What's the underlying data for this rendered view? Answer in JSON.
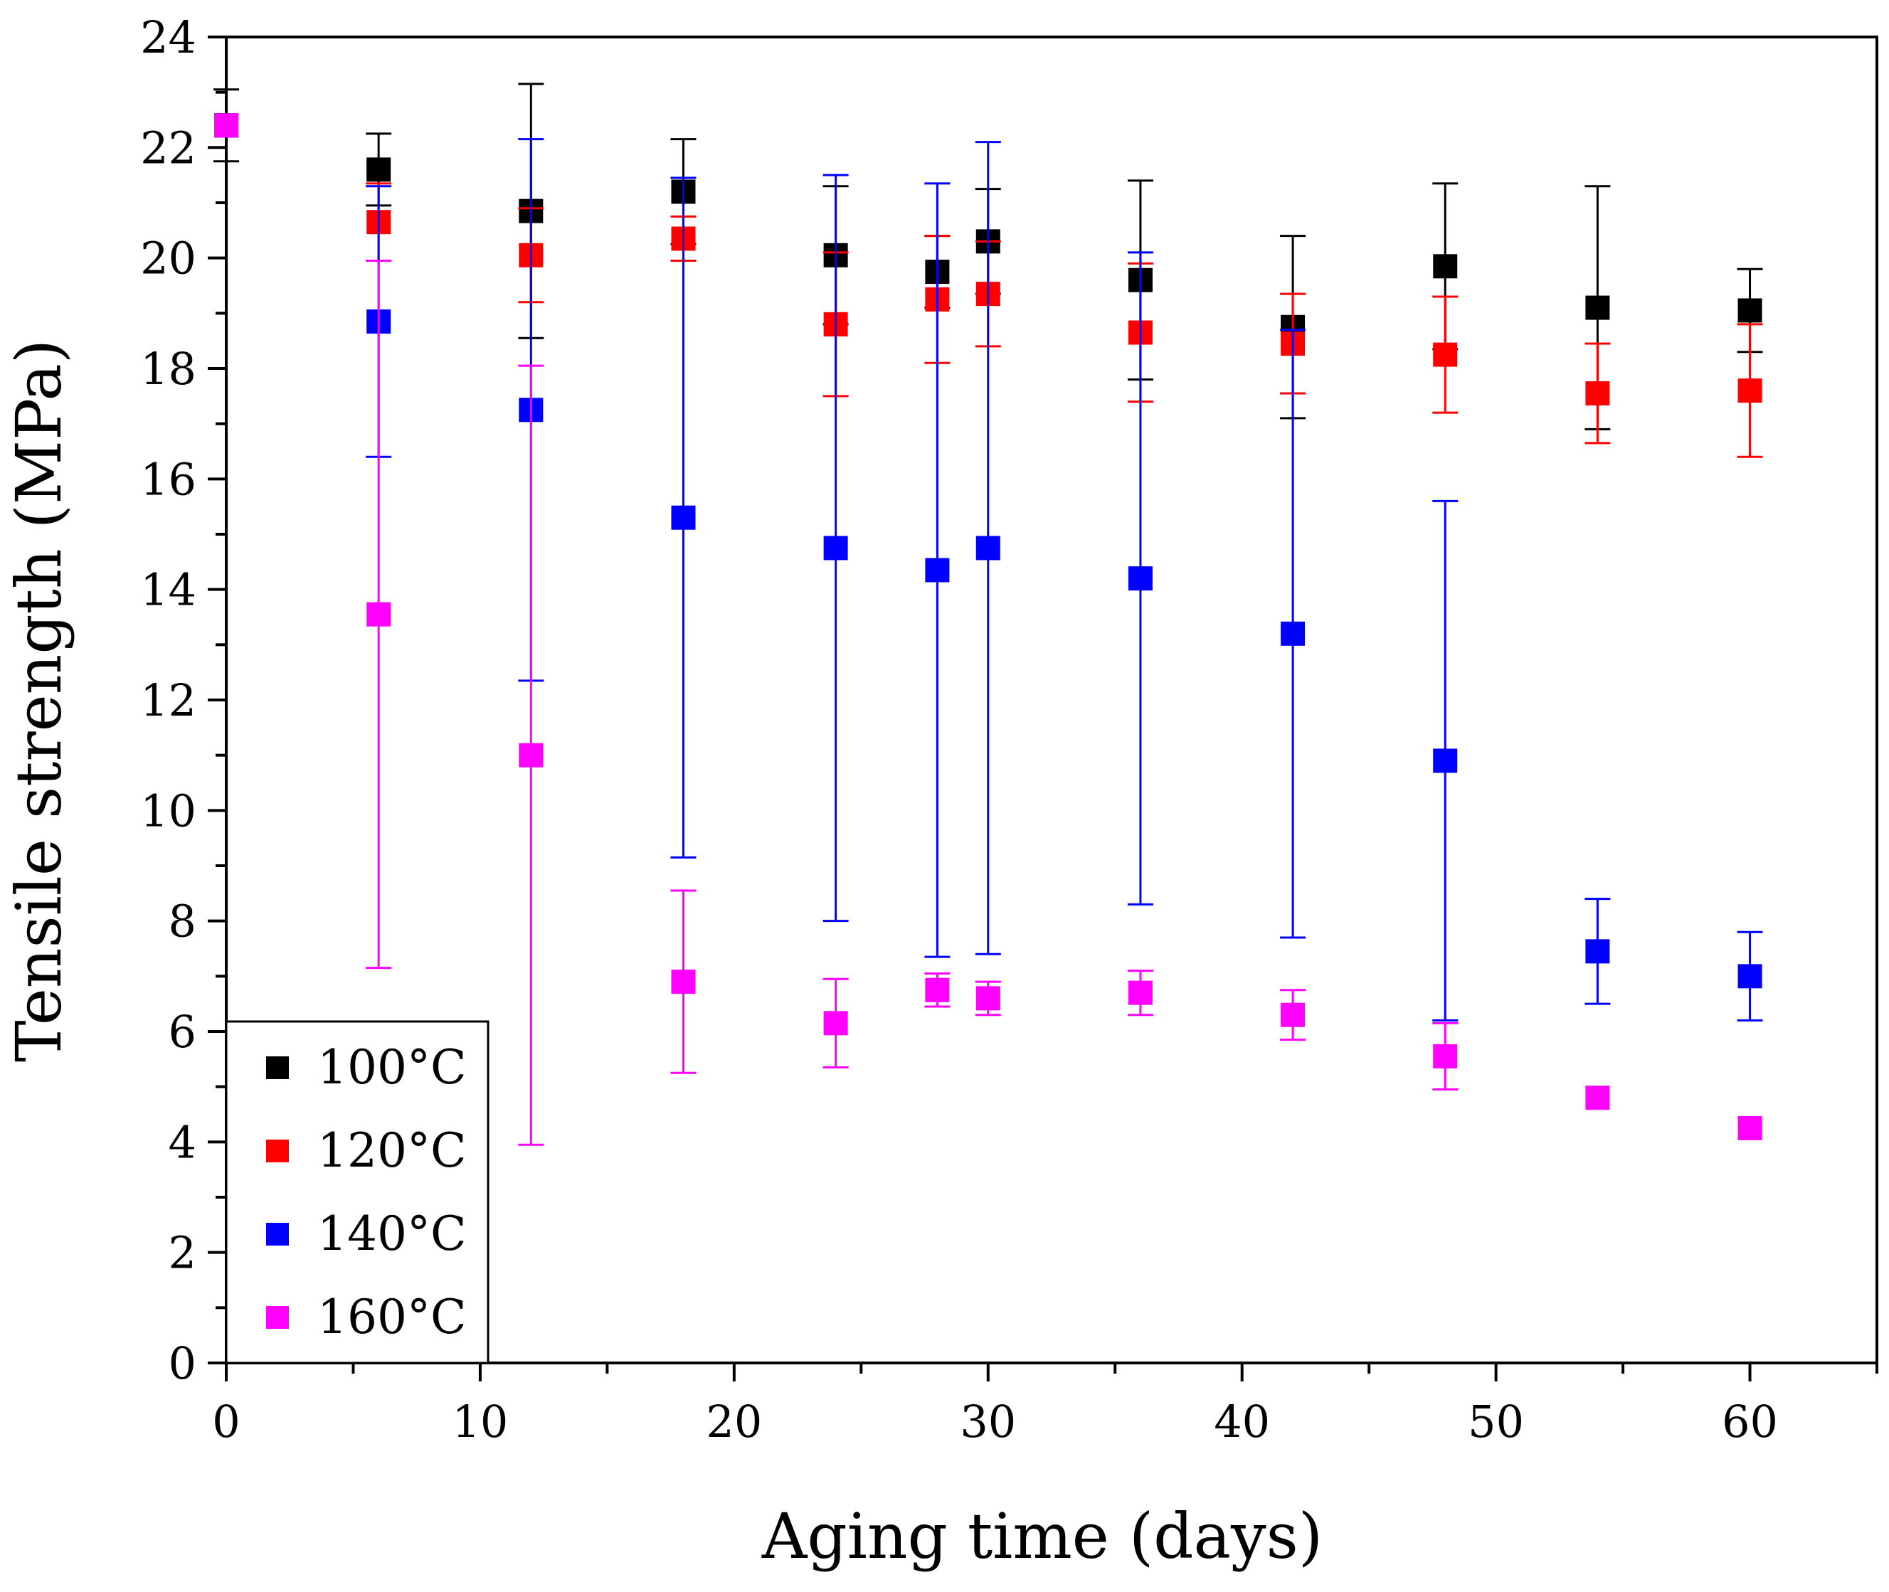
{
  "chart_data": {
    "type": "scatter",
    "xlabel": "Aging time (days)",
    "ylabel": "Tensile strength (MPa)",
    "xlim": [
      0,
      65
    ],
    "ylim": [
      0,
      24
    ],
    "x_ticks": [
      0,
      10,
      20,
      30,
      40,
      50,
      60
    ],
    "y_ticks": [
      0,
      2,
      4,
      6,
      8,
      10,
      12,
      14,
      16,
      18,
      20,
      22,
      24
    ],
    "grid": false,
    "legend_position": "bottom-left",
    "error_bars": true,
    "series": [
      {
        "name": "100°C",
        "color": "#000000",
        "points": [
          {
            "x": 0,
            "y": 22.4,
            "err": 0.65
          },
          {
            "x": 6,
            "y": 21.6,
            "err": 0.65
          },
          {
            "x": 12,
            "y": 20.85,
            "err": 2.3
          },
          {
            "x": 18,
            "y": 21.2,
            "err": 0.95
          },
          {
            "x": 24,
            "y": 20.05,
            "err": 1.25
          },
          {
            "x": 28,
            "y": 19.75,
            "err": 0.65
          },
          {
            "x": 30,
            "y": 20.3,
            "err": 0.95
          },
          {
            "x": 36,
            "y": 19.6,
            "err": 1.8
          },
          {
            "x": 42,
            "y": 18.75,
            "err": 1.65
          },
          {
            "x": 48,
            "y": 19.85,
            "err": 1.5
          },
          {
            "x": 54,
            "y": 19.1,
            "err": 2.2
          },
          {
            "x": 60,
            "y": 19.05,
            "err": 0.75
          }
        ]
      },
      {
        "name": "120°C",
        "color": "#ff0000",
        "points": [
          {
            "x": 0,
            "y": 22.4,
            "err": 0
          },
          {
            "x": 6,
            "y": 20.65,
            "err": 0.7
          },
          {
            "x": 12,
            "y": 20.05,
            "err": 0.85
          },
          {
            "x": 18,
            "y": 20.35,
            "err": 0.4
          },
          {
            "x": 24,
            "y": 18.8,
            "err": 1.3
          },
          {
            "x": 28,
            "y": 19.25,
            "err": 1.15
          },
          {
            "x": 30,
            "y": 19.35,
            "err": 0.95
          },
          {
            "x": 36,
            "y": 18.65,
            "err": 1.25
          },
          {
            "x": 42,
            "y": 18.45,
            "err": 0.9
          },
          {
            "x": 48,
            "y": 18.25,
            "err": 1.05
          },
          {
            "x": 54,
            "y": 17.55,
            "err": 0.9
          },
          {
            "x": 60,
            "y": 17.6,
            "err": 1.2
          }
        ]
      },
      {
        "name": "140°C",
        "color": "#0000ff",
        "points": [
          {
            "x": 0,
            "y": 22.4,
            "err": 0
          },
          {
            "x": 6,
            "y": 18.85,
            "err": 2.45
          },
          {
            "x": 12,
            "y": 17.25,
            "err": 4.9
          },
          {
            "x": 18,
            "y": 15.3,
            "err": 6.15
          },
          {
            "x": 24,
            "y": 14.75,
            "err": 6.75
          },
          {
            "x": 28,
            "y": 14.35,
            "err": 7.0
          },
          {
            "x": 30,
            "y": 14.75,
            "err": 7.35
          },
          {
            "x": 36,
            "y": 14.2,
            "err": 5.9
          },
          {
            "x": 42,
            "y": 13.2,
            "err": 5.5
          },
          {
            "x": 48,
            "y": 10.9,
            "err": 4.7
          },
          {
            "x": 54,
            "y": 7.45,
            "err": 0.95
          },
          {
            "x": 60,
            "y": 7.0,
            "err": 0.8
          }
        ]
      },
      {
        "name": "160°C",
        "color": "#ff00ff",
        "points": [
          {
            "x": 0,
            "y": 22.4,
            "err": 0
          },
          {
            "x": 6,
            "y": 13.55,
            "err": 6.4
          },
          {
            "x": 12,
            "y": 11.0,
            "err": 7.05
          },
          {
            "x": 18,
            "y": 6.9,
            "err": 1.65
          },
          {
            "x": 24,
            "y": 6.15,
            "err": 0.8
          },
          {
            "x": 28,
            "y": 6.75,
            "err": 0.3
          },
          {
            "x": 30,
            "y": 6.6,
            "err": 0.3
          },
          {
            "x": 36,
            "y": 6.7,
            "err": 0.4
          },
          {
            "x": 42,
            "y": 6.3,
            "err": 0.45
          },
          {
            "x": 48,
            "y": 5.55,
            "err": 0.6
          },
          {
            "x": 54,
            "y": 4.8,
            "err": 0
          },
          {
            "x": 60,
            "y": 4.25,
            "err": 0
          }
        ]
      }
    ]
  }
}
